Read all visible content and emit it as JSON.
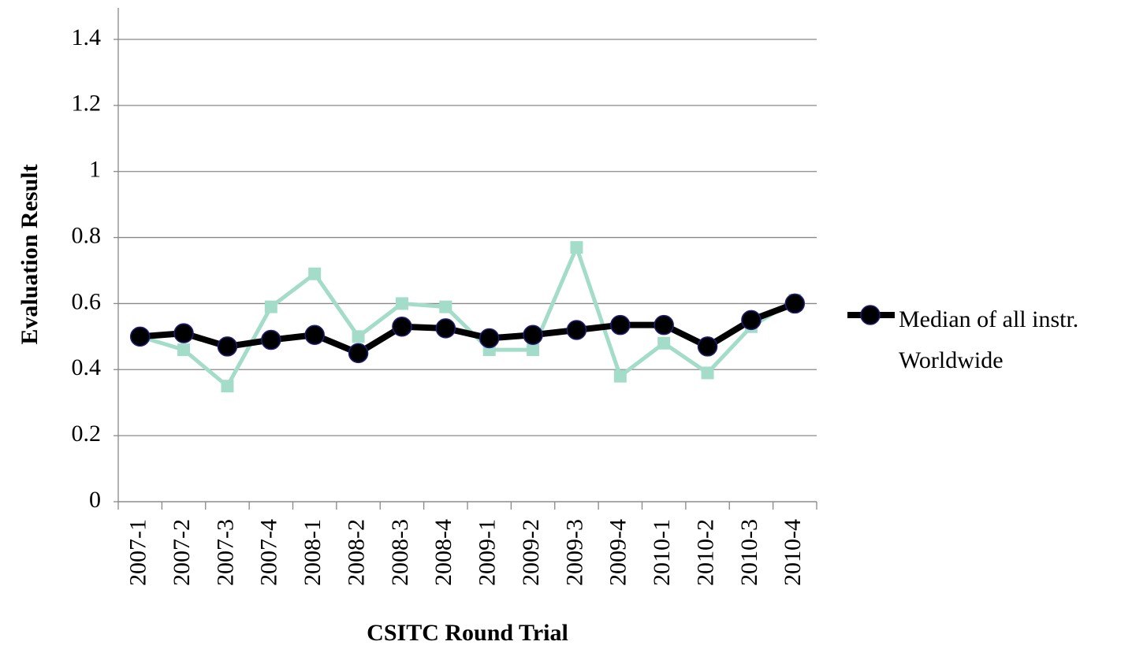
{
  "chart_data": {
    "type": "line",
    "x_label": "CSITC Round Trial",
    "y_label": "Evaluation Result",
    "categories": [
      "2007-1",
      "2007-2",
      "2007-3",
      "2007-4",
      "2008-1",
      "2008-2",
      "2008-3",
      "2008-4",
      "2009-1",
      "2009-2",
      "2009-3",
      "2009-4",
      "2010-1",
      "2010-2",
      "2010-3",
      "2010-4"
    ],
    "series": [
      {
        "color": "#a3dcc9",
        "marker": "square",
        "values": [
          0.5,
          0.46,
          0.35,
          0.59,
          0.69,
          0.5,
          0.6,
          0.59,
          0.46,
          0.46,
          0.77,
          0.38,
          0.48,
          0.39,
          0.53,
          0.61
        ]
      },
      {
        "name": "Median of all instr. Worldwide",
        "color": "#000000",
        "marker": "circle",
        "values": [
          0.5,
          0.51,
          0.47,
          0.49,
          0.505,
          0.45,
          0.53,
          0.525,
          0.495,
          0.505,
          0.52,
          0.535,
          0.535,
          0.47,
          0.55,
          0.6
        ]
      }
    ],
    "ylim": [
      0,
      1.4
    ],
    "yticks": [
      0,
      0.2,
      0.4,
      0.6,
      0.8,
      1,
      1.2,
      1.4
    ],
    "grid": true,
    "legend": "right"
  }
}
